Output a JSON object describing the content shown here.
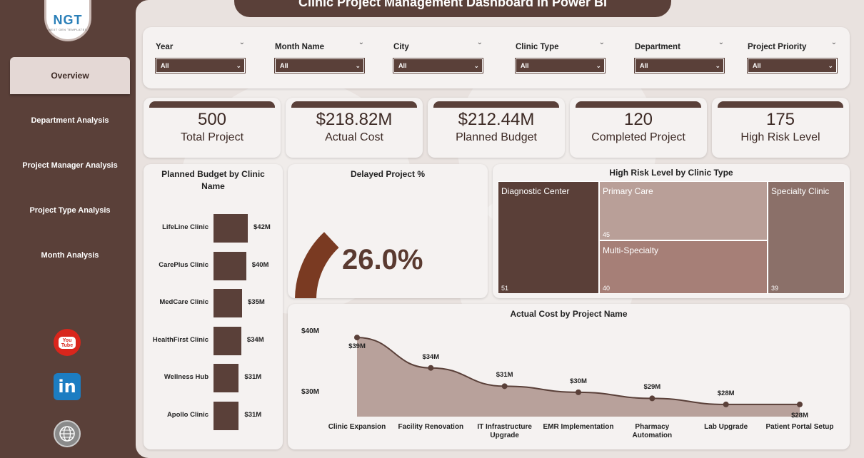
{
  "app": {
    "title": "Clinic Project Management Dashboard in Power BI",
    "logo_text": "NGT",
    "logo_sub": "NEXT GEN TEMPLATES"
  },
  "sidebar": {
    "items": [
      {
        "label": "Overview",
        "active": true
      },
      {
        "label": "Department Analysis",
        "active": false
      },
      {
        "label": "Project Manager Analysis",
        "active": false
      },
      {
        "label": "Project Type Analysis",
        "active": false
      },
      {
        "label": "Month Analysis",
        "active": false
      }
    ],
    "social": [
      {
        "name": "youtube-icon",
        "label": "You Tube"
      },
      {
        "name": "linkedin-icon",
        "label": "in"
      },
      {
        "name": "web-icon",
        "label": ""
      }
    ]
  },
  "filters": [
    {
      "label": "Year",
      "value": "All"
    },
    {
      "label": "Month Name",
      "value": "All"
    },
    {
      "label": "City",
      "value": "All"
    },
    {
      "label": "Clinic Type",
      "value": "All"
    },
    {
      "label": "Department",
      "value": "All"
    },
    {
      "label": "Project Priority",
      "value": "All"
    }
  ],
  "kpis": [
    {
      "value": "500",
      "label": "Total Project"
    },
    {
      "value": "$218.82M",
      "label": "Actual Cost"
    },
    {
      "value": "$212.44M",
      "label": "Planned Budget"
    },
    {
      "value": "120",
      "label": "Completed Project"
    },
    {
      "value": "175",
      "label": "High Risk Level"
    }
  ],
  "colors": {
    "primary": "#5a4039",
    "background": "#e9e2df",
    "card": "#f5f2f1",
    "gauge": "#7a3a22"
  },
  "chart_data": [
    {
      "type": "bar",
      "title": "Planned Budget by Clinic Name",
      "categories": [
        "LifeLine Clinic",
        "CarePlus Clinic",
        "MedCare Clinic",
        "HealthFirst Clinic",
        "Wellness Hub",
        "Apollo Clinic"
      ],
      "values": [
        42,
        40,
        35,
        34,
        31,
        31
      ],
      "data_labels": [
        "$42M",
        "$40M",
        "$35M",
        "$34M",
        "$31M",
        "$31M"
      ]
    },
    {
      "type": "gauge",
      "title": "Delayed Project %",
      "value": 26.0,
      "display": "26.0%"
    },
    {
      "type": "treemap",
      "title": "High Risk Level by Clinic Type",
      "categories": [
        "Diagnostic Center",
        "Primary Care",
        "Multi-Specialty",
        "Specialty Clinic"
      ],
      "values": [
        51,
        45,
        40,
        39
      ]
    },
    {
      "type": "area",
      "title": "Actual Cost by Project Name",
      "categories": [
        "Clinic Expansion",
        "Facility Renovation",
        "IT Infrastructure Upgrade",
        "EMR Implementation",
        "Pharmacy Automation",
        "Lab Upgrade",
        "Patient Portal Setup"
      ],
      "values": [
        39,
        34,
        31,
        30,
        29,
        28,
        28
      ],
      "data_labels": [
        "$39M",
        "$34M",
        "$31M",
        "$30M",
        "$29M",
        "$28M",
        "$28M"
      ],
      "y_ticks": [
        "$40M",
        "$30M"
      ],
      "ylim": [
        26,
        41
      ]
    }
  ]
}
